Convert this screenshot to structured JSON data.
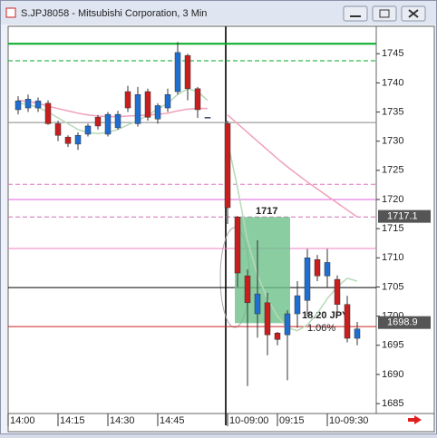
{
  "chart_data": {
    "type": "candlestick",
    "title": "S.JPJ8058 - Mitsubishi Corporation, 3 Min",
    "categories": [
      "14:00",
      null,
      null,
      null,
      null,
      "14:15",
      null,
      null,
      null,
      null,
      "14:30",
      null,
      null,
      null,
      null,
      "14:45",
      null,
      null,
      null,
      null,
      null,
      null,
      "10-09:00",
      null,
      null,
      null,
      null,
      "09:15",
      null,
      null,
      null,
      null,
      "10-09:30",
      null,
      null,
      null
    ],
    "open": [
      null,
      1735.4,
      1735.7,
      1735.7,
      1736.5,
      1733.0,
      1730.7,
      1729.5,
      1731.2,
      1734.1,
      1731.2,
      1732.3,
      1738.5,
      1733.0,
      1738.5,
      1733.8,
      1735.7,
      1738.5,
      1744.7,
      1739.0,
      1734.1,
      null,
      1733.0,
      1717.0,
      1706.9,
      1700.4,
      1702.3,
      1697.1,
      1696.8,
      1700.4,
      1702.7,
      1709.7,
      1706.9,
      1706.3,
      1702.0,
      1696.2
    ],
    "high": [
      null,
      1737.7,
      1738.0,
      1737.5,
      1737.0,
      1733.5,
      1731.0,
      1731.5,
      1733.0,
      1734.5,
      1735.0,
      1735.2,
      1739.5,
      1739.3,
      1739.0,
      1736.5,
      1739.0,
      1747.0,
      1745.0,
      1739.3,
      1734.1,
      null,
      1733.5,
      1717.2,
      1708.0,
      1713.0,
      1704.0,
      1697.3,
      1701.0,
      1706.0,
      1711.5,
      1710.5,
      1711.5,
      1707.0,
      1703.5,
      1699.0
    ],
    "low": [
      null,
      1734.6,
      1735.0,
      1735.0,
      1732.8,
      1730.0,
      1729.0,
      1728.5,
      1730.8,
      1732.0,
      1730.8,
      1732.0,
      1735.0,
      1732.5,
      1733.5,
      1733.0,
      1735.0,
      1738.0,
      1737.0,
      1734.0,
      1734.1,
      null,
      1715.8,
      1705.0,
      1688.0,
      1696.3,
      1693.3,
      1695.0,
      1689.0,
      1698.0,
      1700.0,
      1706.0,
      1705.0,
      1700.0,
      1695.5,
      1695.0
    ],
    "close": [
      null,
      1736.9,
      1737.2,
      1736.9,
      1733.0,
      1731.0,
      1729.6,
      1731.0,
      1732.6,
      1732.6,
      1734.6,
      1734.6,
      1735.7,
      1738.0,
      1734.1,
      1736.1,
      1738.0,
      1745.2,
      1739.0,
      1735.4,
      1734.1,
      null,
      1718.6,
      1707.4,
      1702.3,
      1703.8,
      1696.8,
      1696.0,
      1700.4,
      1703.5,
      1710.0,
      1706.9,
      1709.2,
      1702.0,
      1696.2,
      1697.8
    ],
    "up_color": "#1f6fd1",
    "down_color": "#c81e1e",
    "series": [
      {
        "color": "#f0a0b8",
        "values": [
          null,
          1737.0,
          1736.8,
          1736.5,
          1736.0,
          1735.6,
          1735.2,
          1734.8,
          1734.5,
          1734.3,
          1734.2,
          1734.2,
          1734.3,
          1734.4,
          1734.5,
          1734.6,
          1734.8,
          1735.2,
          1735.5,
          1735.6,
          1735.6,
          null,
          1734.5,
          1733.0,
          1731.5,
          1730.0,
          1728.5,
          1727.0,
          1725.6,
          1724.3,
          1723.0,
          1721.8,
          1720.6,
          1719.4,
          1718.2,
          1717.0
        ]
      },
      {
        "color": "#b8d8b8",
        "values": [
          null,
          1736.5,
          1736.3,
          1735.8,
          1735.0,
          1734.0,
          1733.0,
          1732.0,
          1731.5,
          1731.3,
          1731.5,
          1732.0,
          1732.8,
          1733.5,
          1734.5,
          1735.5,
          1736.5,
          1738.0,
          1739.0,
          1738.5,
          1737.0,
          null,
          1730.0,
          1722.0,
          1713.0,
          1707.0,
          1703.0,
          1700.0,
          1698.0,
          1697.5,
          1698.5,
          1700.5,
          1703.0,
          1705.0,
          1706.5,
          1706.0
        ]
      }
    ],
    "hlines": [
      {
        "value": 1746.7,
        "color": "#00aa22",
        "dash": false
      },
      {
        "value": 1743.8,
        "color": "#00aa22",
        "dash": true
      },
      {
        "value": 1733.2,
        "color": "#888888",
        "dash": false
      },
      {
        "value": 1722.6,
        "color": "#e070c0",
        "dash": true
      },
      {
        "value": 1720.0,
        "color": "#e060e0",
        "dash": false
      },
      {
        "value": 1717.0,
        "color": "#d070b0",
        "dash": true
      },
      {
        "value": 1711.6,
        "color": "#f080c0",
        "dash": false
      },
      {
        "value": 1704.9,
        "color": "#000000",
        "dash": false
      },
      {
        "value": 1698.2,
        "color": "#cc2020",
        "dash": false
      }
    ],
    "price_labels": [
      {
        "value": 1717.1,
        "label": "1717.1"
      },
      {
        "value": 1698.9,
        "label": "1698.9"
      }
    ],
    "box": {
      "from": 23,
      "to": 28,
      "top": 1717,
      "bottom": 1698.8,
      "color": "#6cc08a",
      "change": "18.20 JPY",
      "percent": "1.06%"
    },
    "ylim": [
      1683.3,
      1749.7
    ],
    "yticks": [
      1685,
      1690,
      1695,
      1700,
      1705,
      1710,
      1715,
      1720,
      1725,
      1730,
      1735,
      1740,
      1745
    ]
  }
}
